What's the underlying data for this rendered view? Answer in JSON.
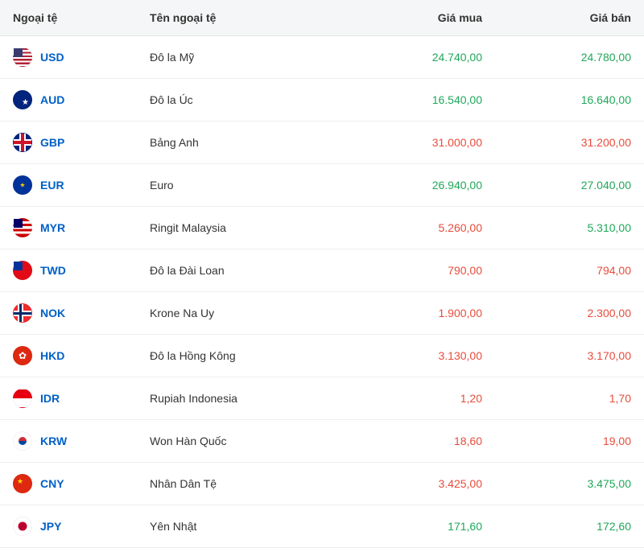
{
  "table": {
    "columns": {
      "currency": "Ngoại tệ",
      "name": "Tên ngoại tệ",
      "buy": "Giá mua",
      "sell": "Giá bán"
    },
    "colors": {
      "up": "#1fa85a",
      "down": "#e74c3c",
      "link": "#0060c7",
      "header_bg": "#f5f6f7",
      "border": "#eeeeee"
    },
    "rows": [
      {
        "code": "USD",
        "flag": "flag-usd",
        "name": "Đô la Mỹ",
        "buy": "24.740,00",
        "buy_trend": "up",
        "sell": "24.780,00",
        "sell_trend": "up"
      },
      {
        "code": "AUD",
        "flag": "flag-aud",
        "name": "Đô la Úc",
        "buy": "16.540,00",
        "buy_trend": "up",
        "sell": "16.640,00",
        "sell_trend": "up"
      },
      {
        "code": "GBP",
        "flag": "flag-gbp",
        "name": "Bảng Anh",
        "buy": "31.000,00",
        "buy_trend": "down",
        "sell": "31.200,00",
        "sell_trend": "down"
      },
      {
        "code": "EUR",
        "flag": "flag-eur",
        "name": "Euro",
        "buy": "26.940,00",
        "buy_trend": "up",
        "sell": "27.040,00",
        "sell_trend": "up"
      },
      {
        "code": "MYR",
        "flag": "flag-myr",
        "name": "Ringit Malaysia",
        "buy": "5.260,00",
        "buy_trend": "down",
        "sell": "5.310,00",
        "sell_trend": "up"
      },
      {
        "code": "TWD",
        "flag": "flag-twd",
        "name": "Đô la Đài Loan",
        "buy": "790,00",
        "buy_trend": "down",
        "sell": "794,00",
        "sell_trend": "down"
      },
      {
        "code": "NOK",
        "flag": "flag-nok",
        "name": "Krone Na Uy",
        "buy": "1.900,00",
        "buy_trend": "down",
        "sell": "2.300,00",
        "sell_trend": "down"
      },
      {
        "code": "HKD",
        "flag": "flag-hkd",
        "name": "Đô la Hồng Kông",
        "buy": "3.130,00",
        "buy_trend": "down",
        "sell": "3.170,00",
        "sell_trend": "down"
      },
      {
        "code": "IDR",
        "flag": "flag-idr",
        "name": "Rupiah Indonesia",
        "buy": "1,20",
        "buy_trend": "down",
        "sell": "1,70",
        "sell_trend": "down"
      },
      {
        "code": "KRW",
        "flag": "flag-krw",
        "name": "Won Hàn Quốc",
        "buy": "18,60",
        "buy_trend": "down",
        "sell": "19,00",
        "sell_trend": "down"
      },
      {
        "code": "CNY",
        "flag": "flag-cny",
        "name": "Nhân Dân Tệ",
        "buy": "3.425,00",
        "buy_trend": "down",
        "sell": "3.475,00",
        "sell_trend": "up"
      },
      {
        "code": "JPY",
        "flag": "flag-jpy",
        "name": "Yên Nhật",
        "buy": "171,60",
        "buy_trend": "up",
        "sell": "172,60",
        "sell_trend": "up"
      }
    ]
  }
}
